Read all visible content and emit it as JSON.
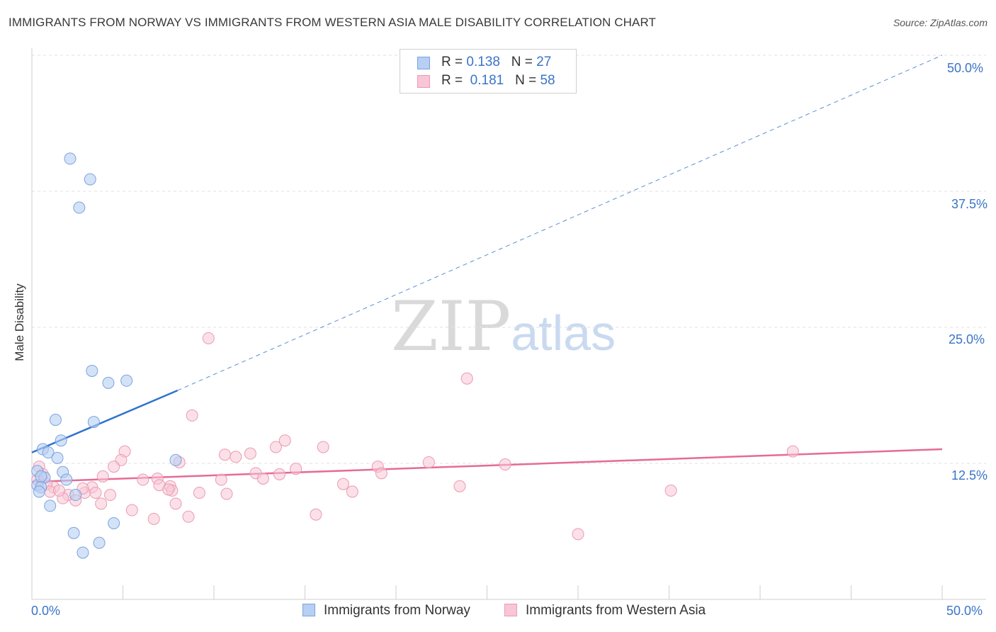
{
  "title": "IMMIGRANTS FROM NORWAY VS IMMIGRANTS FROM WESTERN ASIA MALE DISABILITY CORRELATION CHART",
  "source": "Source: ZipAtlas.com",
  "watermark": {
    "zip": "ZIP",
    "atlas": "atlas"
  },
  "legend": {
    "r_label": "R =",
    "n_label": "N =",
    "rows": [
      {
        "r": "0.138",
        "n": "27"
      },
      {
        "r": "0.181",
        "n": "58"
      }
    ]
  },
  "bottom_legend": {
    "norway": "Immigrants from Norway",
    "western_asia": "Immigrants from Western Asia"
  },
  "x_ticks": {
    "min": "0.0%",
    "max": "50.0%"
  },
  "y_ticks": [
    "50.0%",
    "37.5%",
    "25.0%",
    "12.5%"
  ],
  "colors": {
    "blue_fill": "#b7cff3",
    "blue_stroke": "#7aa3dc",
    "blue_line": "#2f73cf",
    "pink_fill": "#f8c6d6",
    "pink_stroke": "#eb9ab4",
    "pink_line": "#e56b96",
    "tick_text": "#3a74c8"
  },
  "chart_data": {
    "type": "scatter",
    "title": "IMMIGRANTS FROM NORWAY VS IMMIGRANTS FROM WESTERN ASIA MALE DISABILITY CORRELATION CHART",
    "xlabel": "",
    "ylabel": "Male Disability",
    "xlim": [
      0,
      50
    ],
    "ylim": [
      0,
      50
    ],
    "yticks": [
      12.5,
      25.0,
      37.5,
      50.0
    ],
    "grid": true,
    "series": [
      {
        "name": "Immigrants from Norway",
        "r": 0.138,
        "n": 27,
        "trend": {
          "x": [
            0,
            8
          ],
          "y": [
            13.5,
            19.2
          ],
          "extend_dashed_to_x": 50,
          "extend_dashed_to_y": 50.0
        },
        "points": [
          {
            "x": 2.1,
            "y": 40.5
          },
          {
            "x": 3.2,
            "y": 38.6
          },
          {
            "x": 2.6,
            "y": 36.0
          },
          {
            "x": 3.3,
            "y": 21.0
          },
          {
            "x": 4.2,
            "y": 19.9
          },
          {
            "x": 5.2,
            "y": 20.1
          },
          {
            "x": 1.3,
            "y": 16.5
          },
          {
            "x": 3.4,
            "y": 16.3
          },
          {
            "x": 1.6,
            "y": 14.6
          },
          {
            "x": 0.6,
            "y": 13.8
          },
          {
            "x": 0.9,
            "y": 13.5
          },
          {
            "x": 1.4,
            "y": 13.0
          },
          {
            "x": 7.9,
            "y": 12.8
          },
          {
            "x": 0.3,
            "y": 11.8
          },
          {
            "x": 1.7,
            "y": 11.7
          },
          {
            "x": 0.7,
            "y": 11.2
          },
          {
            "x": 1.9,
            "y": 11.0
          },
          {
            "x": 0.3,
            "y": 10.5
          },
          {
            "x": 0.5,
            "y": 10.3
          },
          {
            "x": 0.4,
            "y": 9.9
          },
          {
            "x": 2.4,
            "y": 9.6
          },
          {
            "x": 1.0,
            "y": 8.6
          },
          {
            "x": 4.5,
            "y": 7.0
          },
          {
            "x": 2.3,
            "y": 6.1
          },
          {
            "x": 3.7,
            "y": 5.2
          },
          {
            "x": 2.8,
            "y": 4.3
          },
          {
            "x": 0.5,
            "y": 11.3
          }
        ]
      },
      {
        "name": "Immigrants from Western Asia",
        "r": 0.181,
        "n": 58,
        "trend": {
          "x": [
            0,
            50
          ],
          "y": [
            10.8,
            13.8
          ]
        },
        "points": [
          {
            "x": 9.7,
            "y": 24.0
          },
          {
            "x": 23.9,
            "y": 20.3
          },
          {
            "x": 8.8,
            "y": 16.9
          },
          {
            "x": 13.9,
            "y": 14.6
          },
          {
            "x": 16.0,
            "y": 14.0
          },
          {
            "x": 13.4,
            "y": 14.0
          },
          {
            "x": 5.1,
            "y": 13.6
          },
          {
            "x": 10.6,
            "y": 13.3
          },
          {
            "x": 12.0,
            "y": 13.4
          },
          {
            "x": 11.2,
            "y": 13.1
          },
          {
            "x": 4.9,
            "y": 12.8
          },
          {
            "x": 8.1,
            "y": 12.6
          },
          {
            "x": 21.8,
            "y": 12.6
          },
          {
            "x": 26.0,
            "y": 12.4
          },
          {
            "x": 41.8,
            "y": 13.6
          },
          {
            "x": 19.0,
            "y": 12.2
          },
          {
            "x": 14.5,
            "y": 12.0
          },
          {
            "x": 4.5,
            "y": 12.2
          },
          {
            "x": 12.3,
            "y": 11.6
          },
          {
            "x": 13.6,
            "y": 11.5
          },
          {
            "x": 19.2,
            "y": 11.6
          },
          {
            "x": 3.9,
            "y": 11.3
          },
          {
            "x": 6.9,
            "y": 11.1
          },
          {
            "x": 6.1,
            "y": 11.0
          },
          {
            "x": 10.4,
            "y": 11.0
          },
          {
            "x": 12.7,
            "y": 11.1
          },
          {
            "x": 7.0,
            "y": 10.5
          },
          {
            "x": 7.6,
            "y": 10.4
          },
          {
            "x": 17.1,
            "y": 10.6
          },
          {
            "x": 3.3,
            "y": 10.3
          },
          {
            "x": 23.5,
            "y": 10.4
          },
          {
            "x": 1.2,
            "y": 10.3
          },
          {
            "x": 7.7,
            "y": 10.0
          },
          {
            "x": 9.2,
            "y": 9.8
          },
          {
            "x": 10.7,
            "y": 9.7
          },
          {
            "x": 17.6,
            "y": 9.9
          },
          {
            "x": 35.1,
            "y": 10.0
          },
          {
            "x": 2.9,
            "y": 9.8
          },
          {
            "x": 2.0,
            "y": 9.6
          },
          {
            "x": 4.3,
            "y": 9.6
          },
          {
            "x": 1.7,
            "y": 9.3
          },
          {
            "x": 2.4,
            "y": 9.1
          },
          {
            "x": 3.8,
            "y": 8.8
          },
          {
            "x": 7.9,
            "y": 8.8
          },
          {
            "x": 5.5,
            "y": 8.2
          },
          {
            "x": 15.6,
            "y": 7.8
          },
          {
            "x": 8.6,
            "y": 7.6
          },
          {
            "x": 6.7,
            "y": 7.4
          },
          {
            "x": 30.0,
            "y": 6.0
          },
          {
            "x": 0.4,
            "y": 12.2
          },
          {
            "x": 0.8,
            "y": 10.6
          },
          {
            "x": 1.0,
            "y": 9.9
          },
          {
            "x": 7.5,
            "y": 10.1
          },
          {
            "x": 1.5,
            "y": 10.0
          },
          {
            "x": 0.6,
            "y": 11.5
          },
          {
            "x": 0.3,
            "y": 11.0
          },
          {
            "x": 2.8,
            "y": 10.2
          },
          {
            "x": 3.5,
            "y": 9.8
          }
        ]
      }
    ]
  }
}
